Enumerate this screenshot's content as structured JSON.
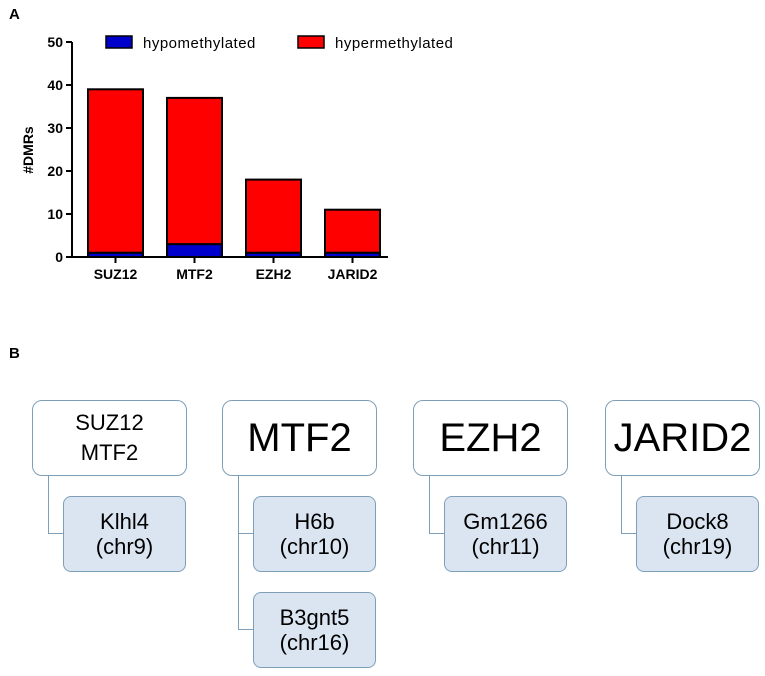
{
  "panel_a_label": "A",
  "panel_b_label": "B",
  "chart_data": {
    "type": "bar",
    "stacked": true,
    "categories": [
      "SUZ12",
      "MTF2",
      "EZH2",
      "JARID2"
    ],
    "series": [
      {
        "name": "hypomethylated",
        "color": "#0000cc",
        "values": [
          1,
          3,
          1,
          1
        ]
      },
      {
        "name": "hypermethylated",
        "color": "#ff0000",
        "values": [
          38,
          34,
          17,
          10
        ]
      }
    ],
    "totals": [
      39,
      37,
      18,
      11
    ],
    "ylabel": "#DMRs",
    "xlabel": "",
    "ylim": [
      0,
      50
    ],
    "yticks": [
      0,
      10,
      20,
      30,
      40,
      50
    ],
    "legend_position": "top",
    "grid": false
  },
  "panel_b": {
    "groups": [
      {
        "gene_lines": [
          "SUZ12",
          "MTF2"
        ],
        "dmrs": [
          {
            "name": "Klhl4",
            "chr": "(chr9)"
          }
        ]
      },
      {
        "gene_lines": [
          "MTF2"
        ],
        "dmrs": [
          {
            "name": "H6b",
            "chr": "(chr10)"
          },
          {
            "name": "B3gnt5",
            "chr": "(chr16)"
          }
        ]
      },
      {
        "gene_lines": [
          "EZH2"
        ],
        "dmrs": [
          {
            "name": "Gm1266",
            "chr": "(chr11)"
          }
        ]
      },
      {
        "gene_lines": [
          "JARID2"
        ],
        "dmrs": [
          {
            "name": "Dock8",
            "chr": "(chr19)"
          }
        ]
      }
    ]
  }
}
